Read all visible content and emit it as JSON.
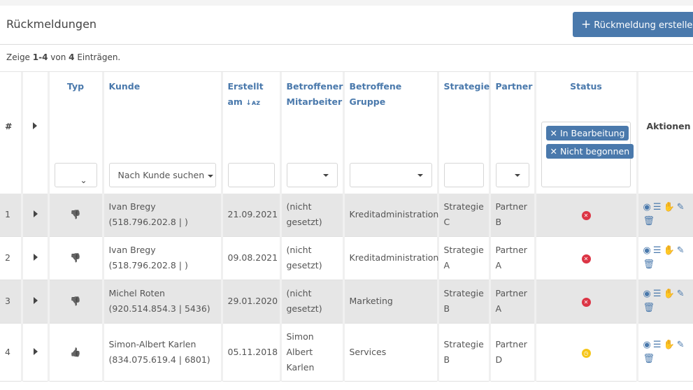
{
  "header": {
    "title": "Rückmeldungen",
    "create_button": "Rückmeldung erstellen",
    "create_icon": "+"
  },
  "summary": {
    "prefix": "Zeige ",
    "range": "1-4",
    "mid": " von ",
    "total": "4",
    "suffix": " Einträgen."
  },
  "columns": {
    "num": "#",
    "typ": "Typ",
    "kunde": "Kunde",
    "erstellt1": "Erstellt",
    "erstellt2": "am",
    "mitarbeiter1": "Betroffener",
    "mitarbeiter2": "Mitarbeiter",
    "gruppe1": "Betroffene",
    "gruppe2": "Gruppe",
    "strategie": "Strategie",
    "partner": "Partner",
    "status": "Status",
    "aktionen": "Aktionen"
  },
  "filters": {
    "kunde_placeholder": "Nach Kunde suchen",
    "status_tags": [
      "In Bearbeitung",
      "Nicht begonnen"
    ]
  },
  "colors": {
    "accent": "#4a79ac",
    "error": "#dc3545",
    "pending": "#f5c518"
  },
  "rows": [
    {
      "num": "1",
      "typ": "thumbs-down",
      "kunde1": "Ivan Bregy",
      "kunde2": "(518.796.202.8 | )",
      "erstellt": "21.09.2021",
      "mitarbeiter1": "(nicht",
      "mitarbeiter2": "gesetzt)",
      "mitarbeiter3": "",
      "gruppe": "Kreditadministration",
      "strategie1": "Strategie",
      "strategie2": "C",
      "partner1": "Partner",
      "partner2": "B",
      "status": "error"
    },
    {
      "num": "2",
      "typ": "thumbs-down",
      "kunde1": "Ivan Bregy",
      "kunde2": "(518.796.202.8 | )",
      "erstellt": "09.08.2021",
      "mitarbeiter1": "(nicht",
      "mitarbeiter2": "gesetzt)",
      "mitarbeiter3": "",
      "gruppe": "Kreditadministration",
      "strategie1": "Strategie",
      "strategie2": "A",
      "partner1": "Partner",
      "partner2": "A",
      "status": "error"
    },
    {
      "num": "3",
      "typ": "thumbs-down",
      "kunde1": "Michel Roten",
      "kunde2": "(920.514.854.3 | 5436)",
      "erstellt": "29.01.2020",
      "mitarbeiter1": "(nicht",
      "mitarbeiter2": "gesetzt)",
      "mitarbeiter3": "",
      "gruppe": "Marketing",
      "strategie1": "Strategie",
      "strategie2": "B",
      "partner1": "Partner",
      "partner2": "A",
      "status": "error"
    },
    {
      "num": "4",
      "typ": "thumbs-up",
      "kunde1": "Simon-Albert Karlen",
      "kunde2": "(834.075.619.4 | 6801)",
      "erstellt": "05.11.2018",
      "mitarbeiter1": "Simon",
      "mitarbeiter2": "Albert",
      "mitarbeiter3": "Karlen",
      "gruppe": "Services",
      "strategie1": "Strategie",
      "strategie2": "B",
      "partner1": "Partner",
      "partner2": "D",
      "status": "pending"
    }
  ]
}
